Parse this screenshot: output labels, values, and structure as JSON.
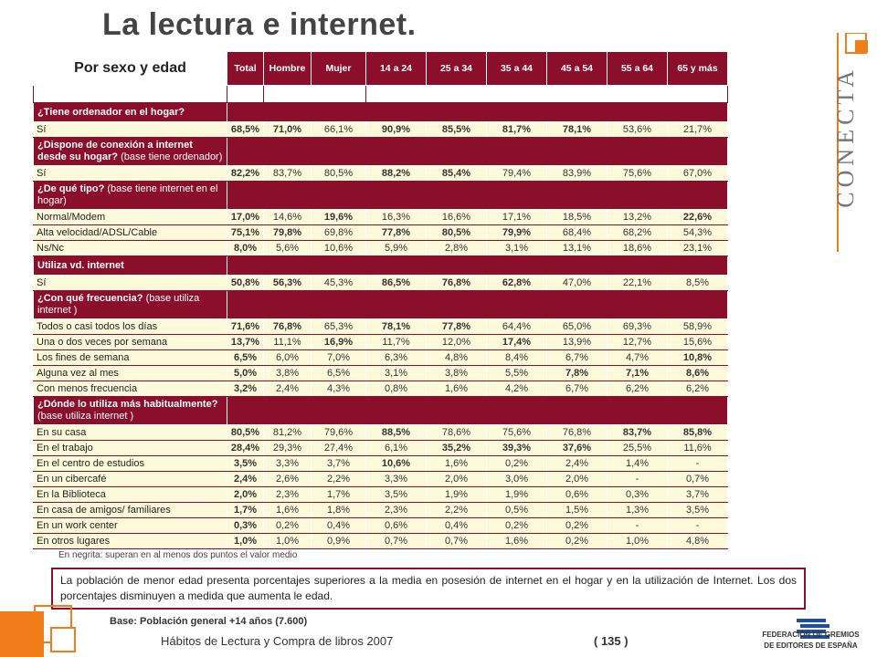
{
  "title": "La lectura e internet.",
  "subtitle": "Por sexo y edad",
  "brand": "CONECTA",
  "columns": [
    "Total",
    "Hombre",
    "Mujer",
    "14 a 24",
    "25 a 34",
    "35 a 44",
    "45 a 54",
    "55 a 64",
    "65 y más"
  ],
  "rows": [
    {
      "type": "q",
      "label": "¿Tiene ordenador en el hogar?"
    },
    {
      "type": "a",
      "label": "Sí",
      "values": [
        "68,5%",
        "71,0%",
        "66,1%",
        "90,9%",
        "85,5%",
        "81,7%",
        "78,1%",
        "53,6%",
        "21,7%"
      ],
      "bold": [
        true,
        true,
        false,
        true,
        true,
        true,
        true,
        false,
        false
      ]
    },
    {
      "type": "q",
      "label": "¿Dispone de conexión a internet desde su hogar?",
      "note": "(base tiene ordenador)"
    },
    {
      "type": "a",
      "label": "Sí",
      "values": [
        "82,2%",
        "83,7%",
        "80,5%",
        "88,2%",
        "85,4%",
        "79,4%",
        "83,9%",
        "75,6%",
        "67,0%"
      ],
      "bold": [
        true,
        false,
        false,
        true,
        true,
        false,
        false,
        false,
        false
      ]
    },
    {
      "type": "q",
      "label": "¿De qué tipo?",
      "note": "(base tiene internet en el hogar)"
    },
    {
      "type": "a",
      "label": "Normal/Modem",
      "values": [
        "17,0%",
        "14,6%",
        "19,6%",
        "16,3%",
        "16,6%",
        "17,1%",
        "18,5%",
        "13,2%",
        "22,6%"
      ],
      "bold": [
        true,
        false,
        true,
        false,
        false,
        false,
        false,
        false,
        true
      ]
    },
    {
      "type": "a",
      "label": "Alta velocidad/ADSL/Cable",
      "values": [
        "75,1%",
        "79,8%",
        "69,8%",
        "77,8%",
        "80,5%",
        "79,9%",
        "68,4%",
        "68,2%",
        "54,3%"
      ],
      "bold": [
        true,
        true,
        false,
        true,
        true,
        true,
        false,
        false,
        false
      ]
    },
    {
      "type": "a",
      "label": "Ns/Nc",
      "values": [
        "8,0%",
        "5,6%",
        "10,6%",
        "5,9%",
        "2,8%",
        "3,1%",
        "13,1%",
        "18,6%",
        "23,1%"
      ],
      "bold": [
        true,
        false,
        false,
        false,
        false,
        false,
        false,
        false,
        false
      ]
    },
    {
      "type": "q",
      "label": "Utiliza vd. internet"
    },
    {
      "type": "a",
      "label": "Sí",
      "values": [
        "50,8%",
        "56,3%",
        "45,3%",
        "86,5%",
        "76,8%",
        "62,8%",
        "47,0%",
        "22,1%",
        "8,5%"
      ],
      "bold": [
        true,
        true,
        false,
        true,
        true,
        true,
        false,
        false,
        false
      ]
    },
    {
      "type": "q",
      "label": "¿Con qué frecuencia?",
      "note": "(base utiliza internet )"
    },
    {
      "type": "a",
      "label": "Todos o casi todos los días",
      "values": [
        "71,6%",
        "76,8%",
        "65,3%",
        "78,1%",
        "77,8%",
        "64,4%",
        "65,0%",
        "69,3%",
        "58,9%"
      ],
      "bold": [
        true,
        true,
        false,
        true,
        true,
        false,
        false,
        false,
        false
      ]
    },
    {
      "type": "a",
      "label": "Una o dos veces por semana",
      "values": [
        "13,7%",
        "11,1%",
        "16,9%",
        "11,7%",
        "12,0%",
        "17,4%",
        "13,9%",
        "12,7%",
        "15,6%"
      ],
      "bold": [
        true,
        false,
        true,
        false,
        false,
        true,
        false,
        false,
        false
      ]
    },
    {
      "type": "a",
      "label": "Los fines de semana",
      "values": [
        "6,5%",
        "6,0%",
        "7,0%",
        "6,3%",
        "4,8%",
        "8,4%",
        "6,7%",
        "4,7%",
        "10,8%"
      ],
      "bold": [
        true,
        false,
        false,
        false,
        false,
        false,
        false,
        false,
        true
      ]
    },
    {
      "type": "a",
      "label": "Alguna vez al mes",
      "values": [
        "5,0%",
        "3,8%",
        "6,5%",
        "3,1%",
        "3,8%",
        "5,5%",
        "7,8%",
        "7,1%",
        "8,6%"
      ],
      "bold": [
        true,
        false,
        false,
        false,
        false,
        false,
        true,
        true,
        true
      ]
    },
    {
      "type": "a",
      "label": "Con menos frecuencia",
      "values": [
        "3,2%",
        "2,4%",
        "4,3%",
        "0,8%",
        "1,6%",
        "4,2%",
        "6,7%",
        "6,2%",
        "6,2%"
      ],
      "bold": [
        true,
        false,
        false,
        false,
        false,
        false,
        false,
        false,
        false
      ]
    },
    {
      "type": "q",
      "label": "¿Dónde lo utiliza más habitualmente?",
      "note": "(base utiliza internet )"
    },
    {
      "type": "a",
      "label": "En su casa",
      "values": [
        "80,5%",
        "81,2%",
        "79,6%",
        "88,5%",
        "78,6%",
        "75,6%",
        "76,8%",
        "83,7%",
        "85,8%"
      ],
      "bold": [
        true,
        false,
        false,
        true,
        false,
        false,
        false,
        true,
        true
      ]
    },
    {
      "type": "a",
      "label": "En el trabajo",
      "values": [
        "28,4%",
        "29,3%",
        "27,4%",
        "6,1%",
        "35,2%",
        "39,3%",
        "37,6%",
        "25,5%",
        "11,6%"
      ],
      "bold": [
        true,
        false,
        false,
        false,
        true,
        true,
        true,
        false,
        false
      ]
    },
    {
      "type": "a",
      "label": "En el centro de estudios",
      "values": [
        "3,5%",
        "3,3%",
        "3,7%",
        "10,6%",
        "1,6%",
        "0,2%",
        "2,4%",
        "1,4%",
        "-"
      ],
      "bold": [
        true,
        false,
        false,
        true,
        false,
        false,
        false,
        false,
        false
      ]
    },
    {
      "type": "a",
      "label": "En un cibercafé",
      "values": [
        "2,4%",
        "2,6%",
        "2,2%",
        "3,3%",
        "2,0%",
        "3,0%",
        "2,0%",
        "-",
        "0,7%"
      ],
      "bold": [
        true,
        false,
        false,
        false,
        false,
        false,
        false,
        false,
        false
      ]
    },
    {
      "type": "a",
      "label": "En la Biblioteca",
      "values": [
        "2,0%",
        "2,3%",
        "1,7%",
        "3,5%",
        "1,9%",
        "1,9%",
        "0,6%",
        "0,3%",
        "3,7%"
      ],
      "bold": [
        true,
        false,
        false,
        false,
        false,
        false,
        false,
        false,
        false
      ]
    },
    {
      "type": "a",
      "label": "En casa de amigos/ familiares",
      "values": [
        "1,7%",
        "1,6%",
        "1,8%",
        "2,3%",
        "2,2%",
        "0,5%",
        "1,5%",
        "1,3%",
        "3,5%"
      ],
      "bold": [
        true,
        false,
        false,
        false,
        false,
        false,
        false,
        false,
        false
      ]
    },
    {
      "type": "a",
      "label": "En un work center",
      "values": [
        "0,3%",
        "0,2%",
        "0,4%",
        "0,6%",
        "0,4%",
        "0,2%",
        "0,2%",
        "-",
        "-"
      ],
      "bold": [
        true,
        false,
        false,
        false,
        false,
        false,
        false,
        false,
        false
      ]
    },
    {
      "type": "a",
      "label": "En otros lugares",
      "values": [
        "1,0%",
        "1,0%",
        "0,9%",
        "0,7%",
        "0,7%",
        "1,6%",
        "0,2%",
        "1,0%",
        "4,8%"
      ],
      "bold": [
        true,
        false,
        false,
        false,
        false,
        false,
        false,
        false,
        false
      ]
    }
  ],
  "note": "En negrita: superan en al menos dos puntos el valor medio",
  "conclusion": "La población de menor edad presenta porcentajes superiores a la media en posesión de internet en el hogar y en la utilización de Internet. Los dos porcentajes disminuyen a medida que aumenta le edad.",
  "base": "Base: Población general +14 años (7.600)",
  "footer": "Hábitos de Lectura y Compra de libros 2007",
  "page_number": "( 135 )",
  "org_name_line1": "FEDERACIÓN DE GREMIOS",
  "org_name_line2": "DE EDITORES DE ESPAÑA",
  "colors": {
    "accent": "#8b0f2a",
    "answer_bg": "#fdfadc",
    "orange": "#f07d1a"
  }
}
